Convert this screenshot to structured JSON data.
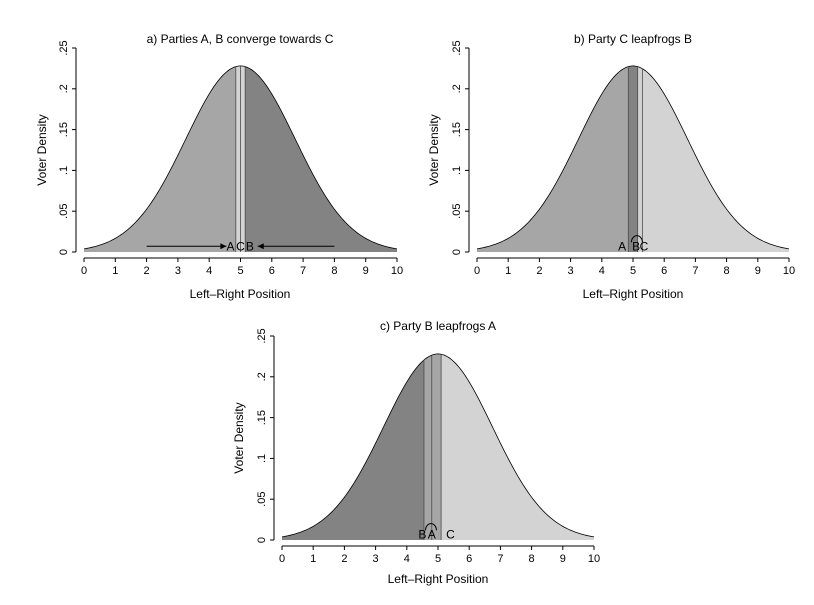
{
  "colors": {
    "dark": "#838383",
    "medium": "#a6a6a6",
    "light": "#d3d3d3",
    "line": "#000000"
  },
  "chart_data": [
    {
      "type": "area",
      "title": "a) Parties A, B converge towards C",
      "xlabel": "Left–Right Position",
      "ylabel": "Voter Density",
      "xlim": [
        0,
        10
      ],
      "ylim": [
        0,
        0.25
      ],
      "x_ticks": [
        "0",
        "1",
        "2",
        "3",
        "4",
        "5",
        "6",
        "7",
        "8",
        "9",
        "10"
      ],
      "y_ticks": [
        "0",
        ".05",
        ".1",
        ".15",
        ".2",
        ".25"
      ],
      "distribution": {
        "kind": "normal",
        "mean": 5,
        "sd": 1.75,
        "peak": 0.228
      },
      "parties": [
        {
          "name": "A",
          "position": 4.85
        },
        {
          "name": "C",
          "position": 5.0
        },
        {
          "name": "B",
          "position": 5.15
        }
      ],
      "regions": [
        {
          "from": 0,
          "to": 4.85,
          "shade": "medium"
        },
        {
          "from": 4.85,
          "to": 5.15,
          "shade": "light"
        },
        {
          "from": 5.15,
          "to": 10,
          "shade": "dark"
        }
      ],
      "arrows": [
        {
          "from": 2,
          "to": 4.55,
          "y": 0.007
        },
        {
          "from": 8,
          "to": 5.55,
          "y": 0.007
        }
      ],
      "labels": [
        {
          "text": "A",
          "x": 4.68,
          "y": 0.007
        },
        {
          "text": "C",
          "x": 5.0,
          "y": 0.007
        },
        {
          "text": "B",
          "x": 5.3,
          "y": 0.007
        }
      ],
      "loops": []
    },
    {
      "type": "area",
      "title": "b) Party C leapfrogs B",
      "xlabel": "Left–Right Position",
      "ylabel": "Voter Density",
      "xlim": [
        0,
        10
      ],
      "ylim": [
        0,
        0.25
      ],
      "x_ticks": [
        "0",
        "1",
        "2",
        "3",
        "4",
        "5",
        "6",
        "7",
        "8",
        "9",
        "10"
      ],
      "y_ticks": [
        "0",
        ".05",
        ".1",
        ".15",
        ".2",
        ".25"
      ],
      "distribution": {
        "kind": "normal",
        "mean": 5,
        "sd": 1.75,
        "peak": 0.228
      },
      "parties": [
        {
          "name": "A",
          "position": 4.85
        },
        {
          "name": "B",
          "position": 5.15
        },
        {
          "name": "C",
          "position": 5.3
        }
      ],
      "regions": [
        {
          "from": 0,
          "to": 4.85,
          "shade": "medium"
        },
        {
          "from": 4.85,
          "to": 5.15,
          "shade": "dark"
        },
        {
          "from": 5.15,
          "to": 10,
          "shade": "light"
        }
      ],
      "arrows": [],
      "labels": [
        {
          "text": "A",
          "x": 4.65,
          "y": 0.007
        },
        {
          "text": "B",
          "x": 5.1,
          "y": 0.007
        },
        {
          "text": "C",
          "x": 5.35,
          "y": 0.007
        }
      ],
      "loops": [
        {
          "from": 4.95,
          "to": 5.3
        }
      ]
    },
    {
      "type": "area",
      "title": "c) Party B leapfrogs A",
      "xlabel": "Left–Right Position",
      "ylabel": "Voter Density",
      "xlim": [
        0,
        10
      ],
      "ylim": [
        0,
        0.25
      ],
      "x_ticks": [
        "0",
        "1",
        "2",
        "3",
        "4",
        "5",
        "6",
        "7",
        "8",
        "9",
        "10"
      ],
      "y_ticks": [
        "0",
        ".05",
        ".1",
        ".15",
        ".2",
        ".25"
      ],
      "distribution": {
        "kind": "normal",
        "mean": 5,
        "sd": 1.75,
        "peak": 0.228
      },
      "parties": [
        {
          "name": "B",
          "position": 4.55
        },
        {
          "name": "A",
          "position": 4.8
        },
        {
          "name": "C",
          "position": 5.1
        }
      ],
      "regions": [
        {
          "from": 0,
          "to": 4.55,
          "shade": "dark"
        },
        {
          "from": 4.55,
          "to": 5.1,
          "shade": "medium"
        },
        {
          "from": 5.1,
          "to": 10,
          "shade": "light"
        }
      ],
      "arrows": [],
      "labels": [
        {
          "text": "B",
          "x": 4.5,
          "y": 0.007
        },
        {
          "text": "A",
          "x": 4.8,
          "y": 0.007
        },
        {
          "text": "C",
          "x": 5.4,
          "y": 0.007
        }
      ],
      "loops": [
        {
          "from": 4.6,
          "to": 4.95
        }
      ]
    }
  ]
}
